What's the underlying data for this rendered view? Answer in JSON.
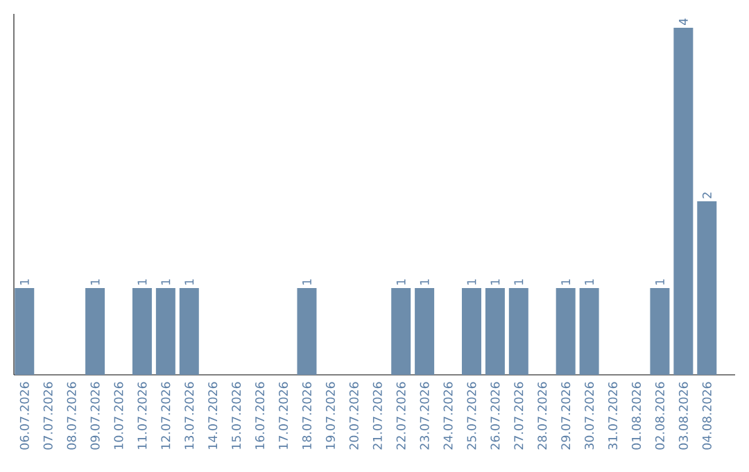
{
  "chart_data": {
    "type": "bar",
    "categories": [
      "06.07.2026",
      "07.07.2026",
      "08.07.2026",
      "09.07.2026",
      "10.07.2026",
      "11.07.2026",
      "12.07.2026",
      "13.07.2026",
      "14.07.2026",
      "15.07.2026",
      "16.07.2026",
      "17.07.2026",
      "18.07.2026",
      "19.07.2026",
      "20.07.2026",
      "21.07.2026",
      "22.07.2026",
      "23.07.2026",
      "24.07.2026",
      "25.07.2026",
      "26.07.2026",
      "27.07.2026",
      "28.07.2026",
      "29.07.2026",
      "30.07.2026",
      "31.07.2026",
      "01.08.2026",
      "02.08.2026",
      "03.08.2026",
      "04.08.2026"
    ],
    "values": [
      1,
      0,
      0,
      1,
      0,
      1,
      1,
      1,
      0,
      0,
      0,
      0,
      1,
      0,
      0,
      0,
      1,
      1,
      0,
      1,
      1,
      1,
      0,
      1,
      1,
      0,
      0,
      1,
      4,
      2
    ],
    "value_labels": [
      "1",
      null,
      null,
      "1",
      null,
      "1",
      "1",
      "1",
      null,
      null,
      null,
      null,
      "1",
      null,
      null,
      null,
      "1",
      "1",
      null,
      "1",
      "1",
      "1",
      null,
      "1",
      "1",
      null,
      null,
      "1",
      "4",
      "2"
    ],
    "color": "#6d8dac"
  }
}
